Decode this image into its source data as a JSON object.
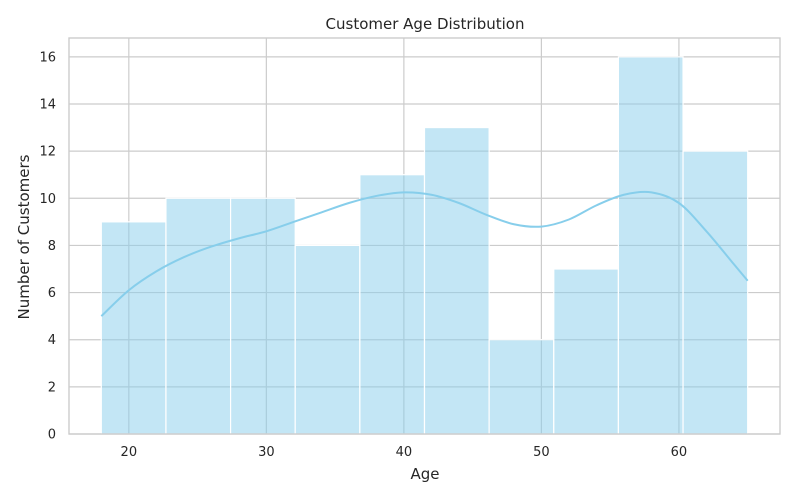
{
  "chart_data": {
    "type": "bar",
    "subtype": "histogram",
    "title": "Customer Age Distribution",
    "xlabel": "Age",
    "ylabel": "Number of Customers",
    "xlim": [
      15.65,
      67.35
    ],
    "ylim": [
      0,
      16.8
    ],
    "xticks": [
      20,
      30,
      40,
      50,
      60
    ],
    "yticks": [
      0,
      2,
      4,
      6,
      8,
      10,
      12,
      14,
      16
    ],
    "grid": true,
    "bin_edges": [
      18,
      22.7,
      27.4,
      32.1,
      36.8,
      41.5,
      46.2,
      50.9,
      55.6,
      60.3,
      65
    ],
    "counts": [
      9,
      10,
      10,
      8,
      11,
      13,
      4,
      7,
      16,
      12
    ],
    "kde": {
      "x": [
        18,
        20,
        22,
        24,
        26,
        28,
        30,
        32,
        34,
        36,
        38,
        40,
        42,
        44,
        46,
        48,
        50,
        52,
        54,
        56,
        58,
        60,
        62,
        64,
        65
      ],
      "y": [
        5.0,
        6.1,
        6.9,
        7.5,
        7.95,
        8.3,
        8.6,
        9.0,
        9.4,
        9.8,
        10.1,
        10.25,
        10.15,
        9.8,
        9.3,
        8.9,
        8.8,
        9.1,
        9.7,
        10.15,
        10.25,
        9.8,
        8.6,
        7.2,
        6.5
      ]
    },
    "colors": {
      "bar": "#87ceeb",
      "bar_opacity": 0.5,
      "kde": "#87ceeb",
      "grid": "#cccccc"
    }
  }
}
